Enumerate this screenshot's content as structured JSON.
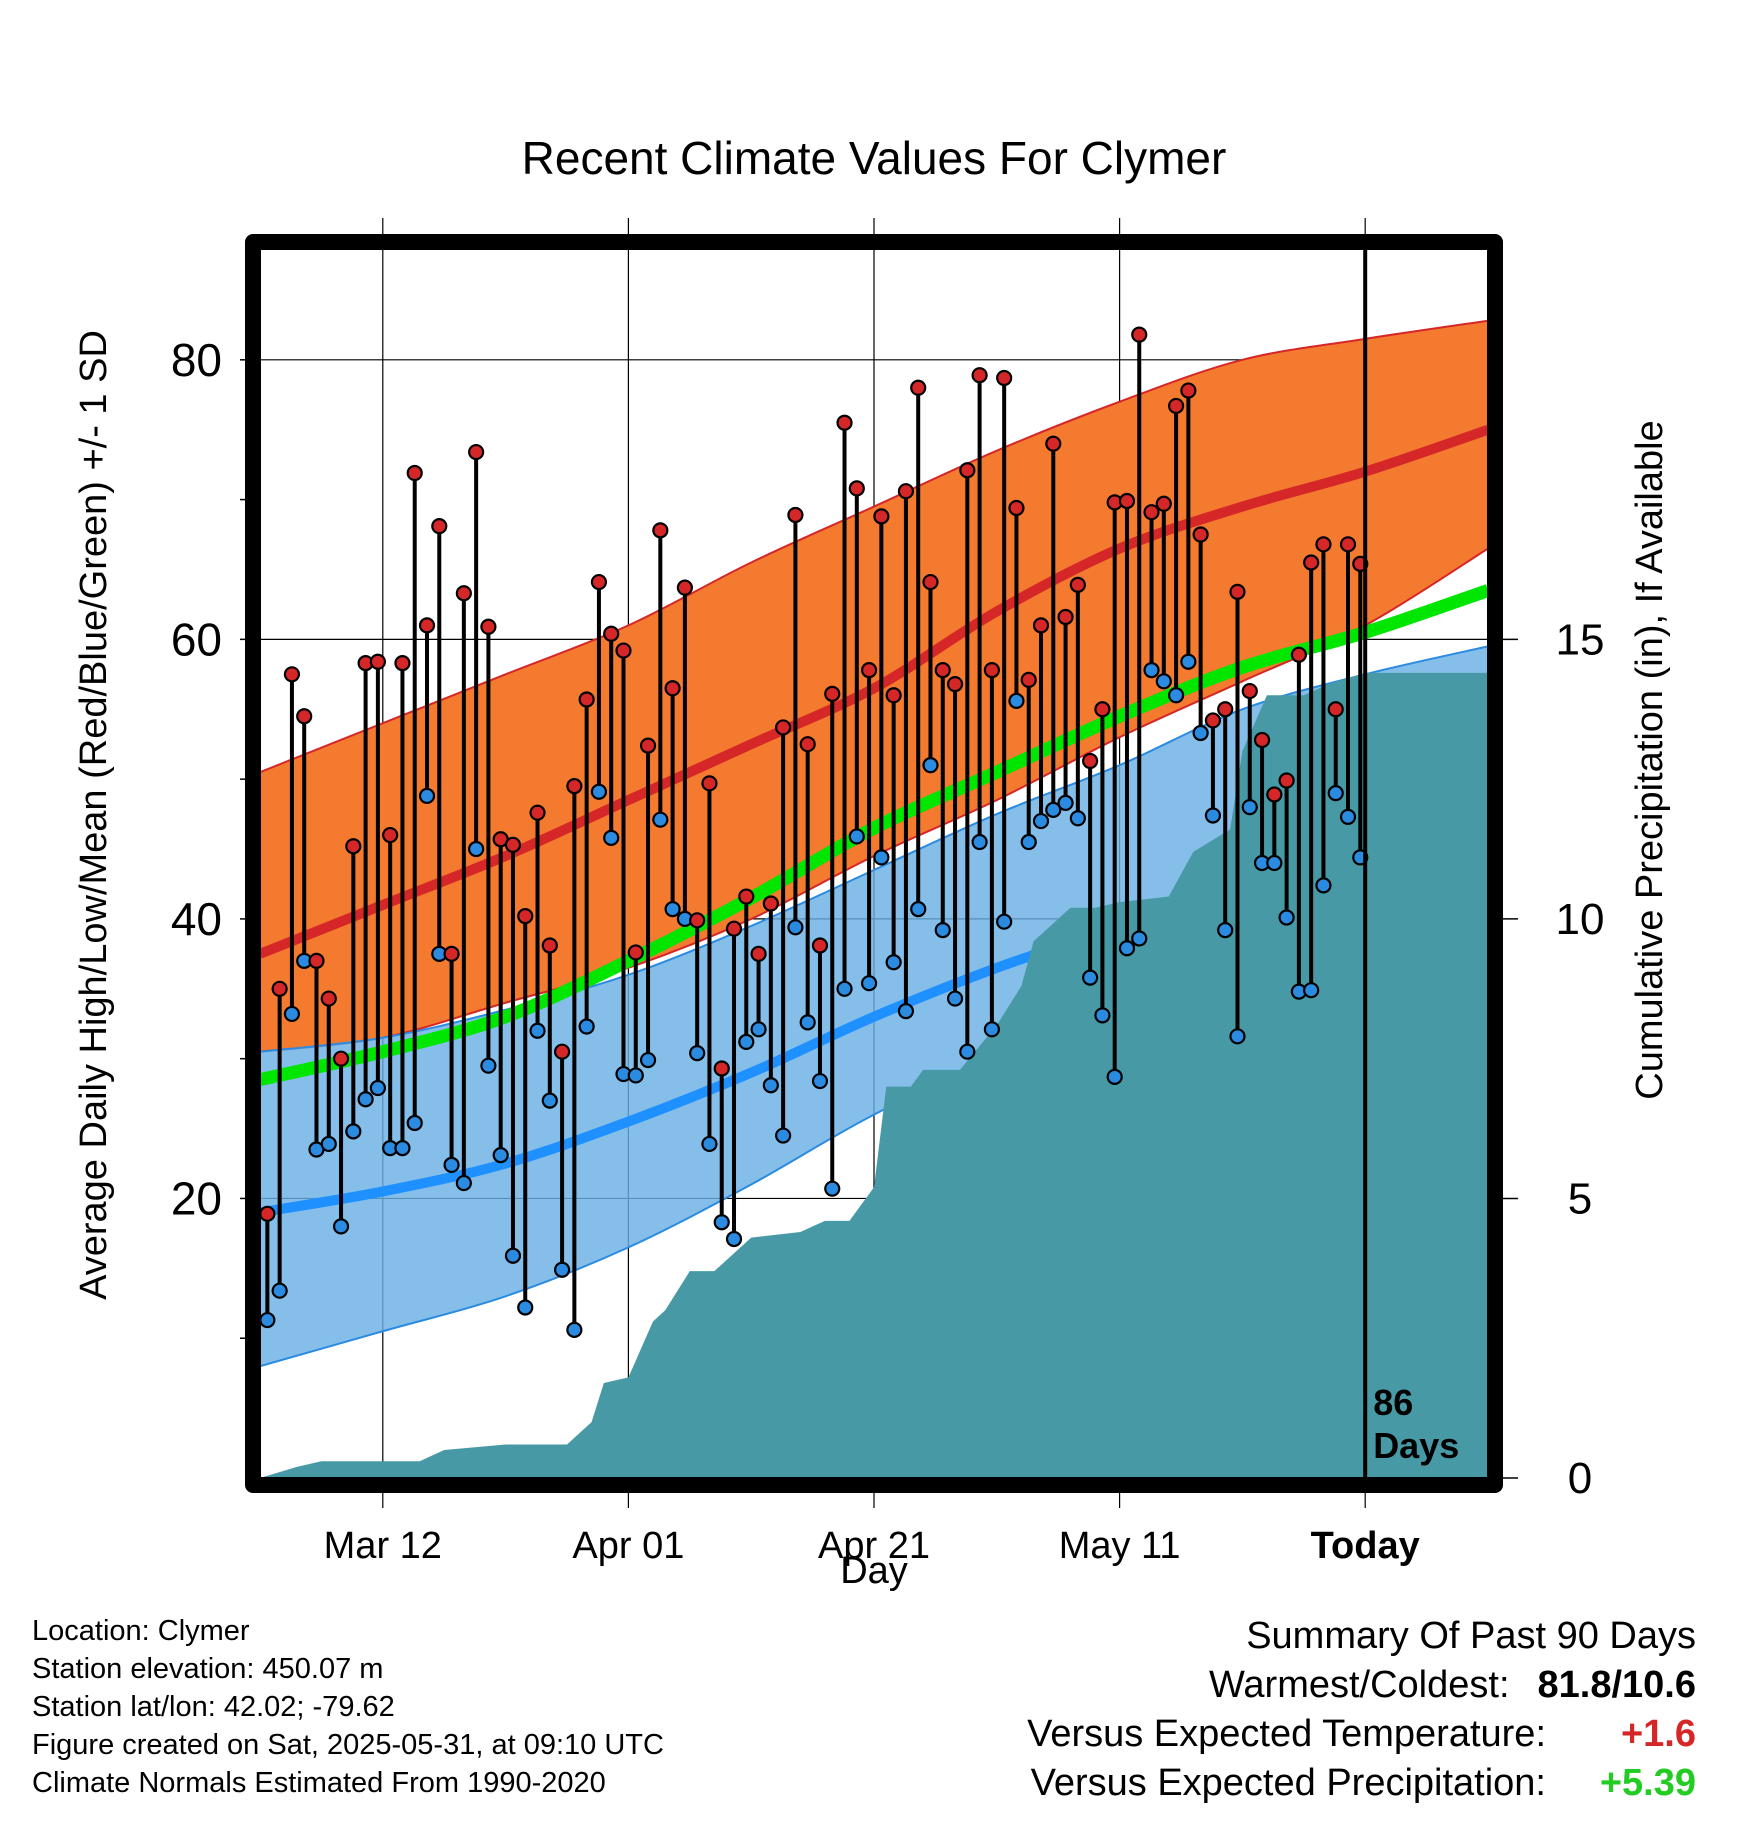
{
  "chart_data": {
    "type": "line",
    "title": "Recent Climate Values For Clymer",
    "xlabel": "Day",
    "ylabel": "Average Daily High/Low/Mean (Red/Blue/Green) +/- 1 SD",
    "y2label": "Cumulative Precipitation (in), If Available",
    "x_ticks": [
      "Mar 12",
      "Apr 01",
      "Apr 21",
      "May 11",
      "Today"
    ],
    "x_tick_days": [
      10,
      30,
      50,
      70,
      90
    ],
    "xlim": [
      0,
      100
    ],
    "ylim": [
      0,
      88
    ],
    "y_ticks": [
      20,
      40,
      60,
      80
    ],
    "y2lim": [
      0,
      22
    ],
    "y2_ticks": [
      0,
      5,
      10,
      15
    ],
    "grid": true,
    "days_label": [
      "86",
      "Days"
    ],
    "normals": {
      "day": [
        0,
        10,
        20,
        30,
        40,
        50,
        60,
        70,
        80,
        90,
        100
      ],
      "high": [
        37.5,
        41,
        44.5,
        48.5,
        52.5,
        56.5,
        62,
        66.5,
        69.5,
        72,
        75
      ],
      "high_sd_upper": [
        50.5,
        54,
        57.5,
        61,
        65.5,
        69.5,
        73.5,
        77,
        80,
        81.5,
        82.8
      ],
      "high_sd_lower": [
        30.5,
        31.5,
        34,
        36.5,
        40,
        44.5,
        48.5,
        53,
        57,
        61,
        66.5
      ],
      "low": [
        19,
        20.5,
        22.5,
        25.5,
        29,
        33,
        36.5,
        39.5,
        43,
        47.5,
        52
      ],
      "low_sd_upper": [
        30.5,
        31.5,
        33.5,
        36,
        39.5,
        43.5,
        47.5,
        51,
        55,
        57.5,
        59.5
      ],
      "low_sd_lower": [
        8,
        10.5,
        13,
        16.5,
        21,
        26,
        30,
        33.5,
        37,
        41,
        45
      ],
      "mean": [
        28.5,
        30.5,
        33,
        37,
        41.5,
        46.5,
        50.5,
        54.5,
        58,
        60.5,
        63.5
      ]
    },
    "series": [
      {
        "name": "High",
        "color": "#d62728",
        "values": [
          18.9,
          35.0,
          57.5,
          54.5,
          37.0,
          34.3,
          30.0,
          45.2,
          58.3,
          58.4,
          46.0,
          58.3,
          71.9,
          61.0,
          68.1,
          37.5,
          63.3,
          73.4,
          60.9,
          45.7,
          45.3,
          40.2,
          47.6,
          38.1,
          30.5,
          49.5,
          55.7,
          64.1,
          60.4,
          59.2,
          37.6,
          52.4,
          67.8,
          56.5,
          63.7,
          39.9,
          49.7,
          29.3,
          39.3,
          41.6,
          37.5,
          41.1,
          53.7,
          68.9,
          52.5,
          38.1,
          56.1,
          75.5,
          70.8,
          57.8,
          68.8,
          56.0,
          70.6,
          78.0,
          64.1,
          57.8,
          56.8,
          72.1,
          78.9,
          57.8,
          78.7,
          69.4,
          57.1,
          61.0,
          74.0,
          61.6,
          63.9,
          51.3,
          55.0,
          69.8,
          69.9,
          81.8,
          69.1,
          69.7,
          76.7,
          77.8,
          67.5,
          54.2,
          55.0,
          63.4,
          56.3,
          52.8,
          48.9,
          49.9,
          58.9,
          65.5,
          66.8,
          55.0,
          66.8,
          65.4
        ]
      },
      {
        "name": "Low",
        "color": "#2b8be0",
        "values": [
          11.3,
          13.4,
          33.2,
          37.0,
          23.5,
          23.9,
          18.0,
          24.8,
          27.1,
          27.9,
          23.6,
          23.6,
          25.4,
          48.8,
          37.5,
          22.4,
          21.1,
          45.0,
          29.5,
          23.1,
          15.9,
          12.2,
          32.0,
          27.0,
          14.9,
          10.6,
          32.3,
          49.1,
          45.8,
          28.9,
          28.8,
          29.9,
          47.1,
          40.7,
          40.0,
          30.4,
          23.9,
          18.3,
          17.1,
          31.2,
          32.1,
          28.1,
          24.5,
          39.4,
          32.6,
          28.4,
          20.7,
          35.0,
          45.9,
          35.4,
          44.4,
          36.9,
          33.4,
          40.7,
          51.0,
          39.2,
          34.3,
          30.5,
          45.5,
          32.1,
          39.8,
          55.6,
          45.5,
          47.0,
          47.8,
          48.3,
          47.2,
          35.8,
          33.1,
          28.7,
          37.9,
          38.6,
          57.8,
          57.0,
          56.0,
          58.4,
          53.3,
          47.4,
          39.2,
          31.6,
          48.0,
          44.0,
          44.0,
          40.1,
          34.8,
          34.9,
          42.4,
          49.0,
          47.3,
          44.4
        ]
      }
    ],
    "precip": {
      "day": [
        0,
        3,
        5,
        10,
        13,
        15,
        20,
        25,
        27,
        28,
        30,
        32,
        33,
        35,
        37,
        40,
        44,
        46,
        48,
        50,
        51,
        53,
        54,
        57,
        60,
        62,
        63,
        65,
        66,
        68,
        70,
        74,
        76,
        79,
        80,
        82,
        85,
        87,
        90,
        100
      ],
      "cumulative": [
        0,
        0.2,
        0.3,
        0.3,
        0.3,
        0.5,
        0.6,
        0.6,
        1.0,
        1.7,
        1.8,
        2.8,
        3.0,
        3.7,
        3.7,
        4.3,
        4.4,
        4.6,
        4.6,
        5.2,
        7.0,
        7.0,
        7.3,
        7.3,
        8.1,
        8.8,
        9.6,
        10.0,
        10.2,
        10.2,
        10.3,
        10.4,
        11.2,
        11.6,
        13.0,
        14.0,
        14.0,
        14.2,
        14.4,
        14.4
      ]
    }
  },
  "info": {
    "location": "Location: Clymer",
    "elevation": "Station elevation: 450.07 m",
    "latlon": "Station lat/lon: 42.02; -79.62",
    "created": "Figure created on Sat, 2025-05-31, at 09:10 UTC",
    "normals": "Climate Normals Estimated From 1990-2020"
  },
  "summary": {
    "heading": "Summary Of Past 90 Days",
    "warmest_label": "Warmest/Coldest:",
    "warmest_value": "81.8/10.6",
    "temp_label": "Versus Expected Temperature:",
    "temp_value": "+1.6",
    "temp_color": "#d62728",
    "precip_label": "Versus Expected Precipitation:",
    "precip_value": "+5.39",
    "precip_color": "#22cc22"
  }
}
